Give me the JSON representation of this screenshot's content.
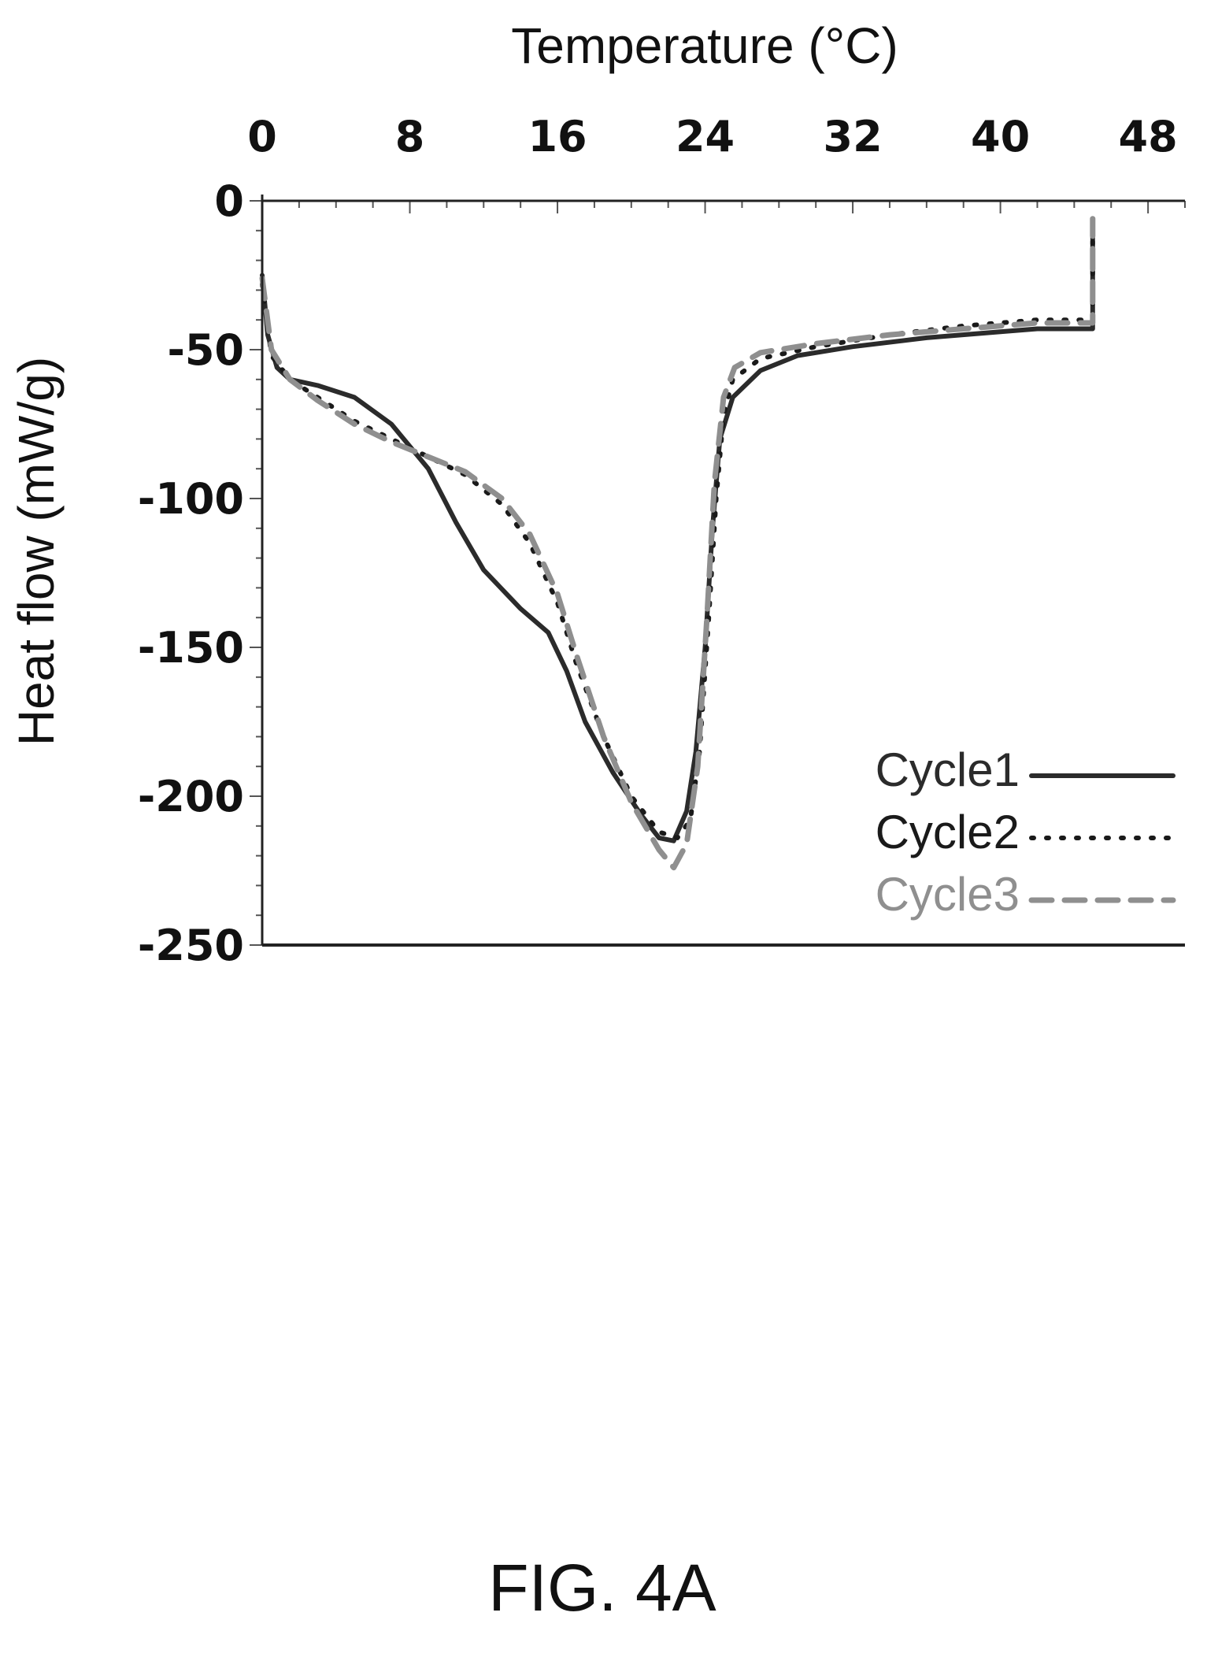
{
  "chart_data": {
    "type": "line",
    "xlabel": "Temperature (°C)",
    "ylabel": "Heat flow (mW/g)",
    "xlim": [
      0,
      50
    ],
    "ylim": [
      -250,
      0
    ],
    "x_ticks": [
      0,
      8,
      16,
      24,
      32,
      40,
      48
    ],
    "x_tick_labels": [
      "0",
      "8",
      "16",
      "24",
      "32",
      "40",
      "48"
    ],
    "y_ticks": [
      0,
      -50,
      -100,
      -150,
      -200,
      -250
    ],
    "y_tick_labels": [
      "0",
      "-50",
      "-100",
      "-150",
      "-200",
      "-250"
    ],
    "x_axis_position": "top",
    "grid": false,
    "legend_position": "bottom-right",
    "series": [
      {
        "name": "Cycle1",
        "color": "#2b2b2b",
        "style": "solid",
        "points": [
          [
            0,
            -25
          ],
          [
            0.3,
            -45
          ],
          [
            0.8,
            -56
          ],
          [
            1.5,
            -60
          ],
          [
            3,
            -62
          ],
          [
            5,
            -66
          ],
          [
            7,
            -75
          ],
          [
            9,
            -90
          ],
          [
            10.5,
            -108
          ],
          [
            12,
            -124
          ],
          [
            14,
            -137
          ],
          [
            15.5,
            -145
          ],
          [
            16.5,
            -158
          ],
          [
            17.5,
            -175
          ],
          [
            19,
            -192
          ],
          [
            20.5,
            -206
          ],
          [
            21.5,
            -214
          ],
          [
            22.3,
            -215
          ],
          [
            23,
            -205
          ],
          [
            23.5,
            -185
          ],
          [
            24,
            -150
          ],
          [
            24.4,
            -110
          ],
          [
            24.8,
            -80
          ],
          [
            25.5,
            -66
          ],
          [
            27,
            -57
          ],
          [
            29,
            -52
          ],
          [
            32,
            -49
          ],
          [
            36,
            -46
          ],
          [
            40,
            -44
          ],
          [
            42,
            -43
          ],
          [
            45,
            -43
          ],
          [
            45,
            -6
          ]
        ]
      },
      {
        "name": "Cycle2",
        "color": "#1a1a1a",
        "style": "dotted",
        "points": [
          [
            0,
            -28
          ],
          [
            0.5,
            -52
          ],
          [
            1.5,
            -60
          ],
          [
            3,
            -66
          ],
          [
            5,
            -74
          ],
          [
            7,
            -80
          ],
          [
            9,
            -86
          ],
          [
            11,
            -92
          ],
          [
            13,
            -102
          ],
          [
            14.5,
            -115
          ],
          [
            16,
            -135
          ],
          [
            17,
            -155
          ],
          [
            18.5,
            -180
          ],
          [
            20,
            -200
          ],
          [
            21.5,
            -212
          ],
          [
            22.5,
            -214
          ],
          [
            23.2,
            -208
          ],
          [
            23.7,
            -185
          ],
          [
            24.2,
            -140
          ],
          [
            24.6,
            -100
          ],
          [
            25,
            -72
          ],
          [
            25.5,
            -60
          ],
          [
            27,
            -53
          ],
          [
            30,
            -49
          ],
          [
            34,
            -45
          ],
          [
            38,
            -42
          ],
          [
            42,
            -40
          ],
          [
            45,
            -40
          ],
          [
            45,
            -6
          ]
        ]
      },
      {
        "name": "Cycle3",
        "color": "#8f8f8f",
        "style": "dashed",
        "points": [
          [
            0,
            -26
          ],
          [
            0.5,
            -50
          ],
          [
            1.5,
            -60
          ],
          [
            3,
            -67
          ],
          [
            5,
            -75
          ],
          [
            7,
            -81
          ],
          [
            9,
            -86
          ],
          [
            11,
            -91
          ],
          [
            13,
            -100
          ],
          [
            14.5,
            -112
          ],
          [
            16,
            -132
          ],
          [
            17,
            -152
          ],
          [
            18.5,
            -180
          ],
          [
            20,
            -202
          ],
          [
            21.5,
            -218
          ],
          [
            22.3,
            -224
          ],
          [
            23,
            -216
          ],
          [
            23.6,
            -190
          ],
          [
            24.1,
            -140
          ],
          [
            24.5,
            -95
          ],
          [
            25,
            -66
          ],
          [
            25.6,
            -56
          ],
          [
            27,
            -51
          ],
          [
            30,
            -48
          ],
          [
            34,
            -45
          ],
          [
            38,
            -43
          ],
          [
            42,
            -41
          ],
          [
            45,
            -41
          ],
          [
            45,
            -6
          ]
        ]
      }
    ]
  },
  "caption": "FIG. 4A"
}
